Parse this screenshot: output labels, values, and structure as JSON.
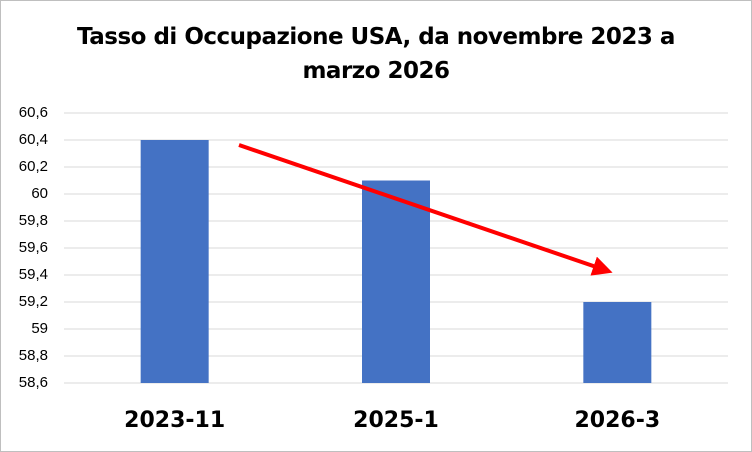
{
  "chart_data": {
    "type": "bar",
    "title": "Tasso di Occupazione USA, da novembre 2023 a marzo 2026",
    "categories": [
      "2023-11",
      "2025-1",
      "2026-3"
    ],
    "values": [
      60.4,
      60.1,
      59.2
    ],
    "color": "#4472c4",
    "ylim": [
      58.6,
      60.6
    ],
    "yticks": [
      {
        "value": 58.6,
        "label": "58,6"
      },
      {
        "value": 58.8,
        "label": "58,8"
      },
      59,
      {
        "value": 59.2,
        "label": "59,2"
      },
      {
        "value": 59.4,
        "label": "59,4"
      },
      {
        "value": 59.6,
        "label": "59,6"
      },
      {
        "value": 59.8,
        "label": "59,8"
      },
      60,
      {
        "value": 60.2,
        "label": "60,2"
      },
      {
        "value": 60.4,
        "label": "60,4"
      },
      {
        "value": 60.6,
        "label": "60,6"
      }
    ],
    "grid": true
  }
}
